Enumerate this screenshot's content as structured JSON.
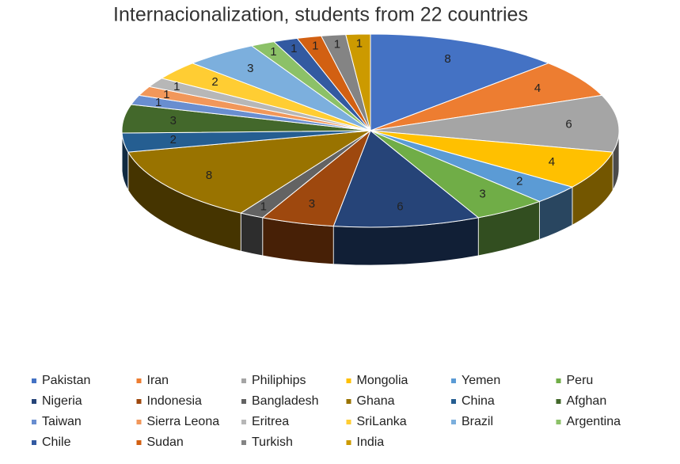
{
  "chart_data": {
    "type": "pie",
    "title": "Internacionalization, students from 22 countries",
    "categories": [
      "Pakistan",
      "Iran",
      "Philiphips",
      "Mongolia",
      "Yemen",
      "Peru",
      "Nigeria",
      "Indonesia",
      "Bangladesh",
      "Ghana",
      "China",
      "Afghan",
      "Taiwan",
      "Sierra Leona",
      "Eritrea",
      "SriLanka",
      "Brazil",
      "Argentina",
      "Chile",
      "Sudan",
      "Turkish",
      "India"
    ],
    "values": [
      8,
      4,
      6,
      4,
      2,
      3,
      6,
      3,
      1,
      8,
      2,
      3,
      1,
      1,
      1,
      2,
      3,
      1,
      1,
      1,
      1,
      1
    ],
    "colors": [
      "#4472C4",
      "#ED7D31",
      "#A5A5A5",
      "#FFC000",
      "#5B9BD5",
      "#70AD47",
      "#264478",
      "#9E480E",
      "#636363",
      "#997300",
      "#255E91",
      "#43682B",
      "#698ED0",
      "#F1975A",
      "#B7B7B7",
      "#FFCD33",
      "#7CAFDD",
      "#8CC168",
      "#335AA1",
      "#D26012",
      "#848484",
      "#CC9A00"
    ],
    "legend": "bottom"
  }
}
